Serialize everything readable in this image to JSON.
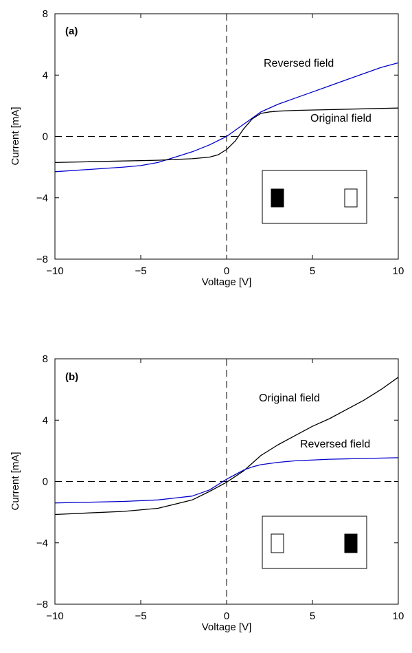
{
  "chart_data": [
    {
      "type": "line",
      "panel_label": "(a)",
      "xlabel": "Voltage [V]",
      "ylabel": "Current [mA]",
      "xlim": [
        -10,
        10
      ],
      "ylim": [
        -8,
        8
      ],
      "xticks": [
        -10,
        -5,
        0,
        5,
        10
      ],
      "yticks": [
        -8,
        -4,
        0,
        4,
        8
      ],
      "x_tick_labels": [
        "−10",
        "−5",
        "0",
        "5",
        "10"
      ],
      "y_tick_labels": [
        "−8",
        "−4",
        "0",
        "4",
        "8"
      ],
      "grid": false,
      "reference_lines": [
        "y=0 dashed",
        "x=0 dashed"
      ],
      "series": [
        {
          "name": "Reversed field",
          "color": "#0000cc",
          "x": [
            -10,
            -8,
            -6,
            -5,
            -4,
            -3,
            -2,
            -1,
            0,
            1,
            2,
            3,
            4,
            5,
            6,
            7,
            8,
            9,
            10
          ],
          "y": [
            -2.3,
            -2.15,
            -2.0,
            -1.9,
            -1.7,
            -1.35,
            -1.0,
            -0.55,
            0.0,
            0.8,
            1.6,
            2.1,
            2.5,
            2.9,
            3.3,
            3.7,
            4.1,
            4.5,
            4.8
          ]
        },
        {
          "name": "Original field",
          "color": "#000000",
          "x": [
            -10,
            -8,
            -6,
            -4,
            -2,
            -1,
            -0.5,
            0,
            0.5,
            1,
            1.5,
            2,
            2.5,
            3,
            4,
            6,
            8,
            10
          ],
          "y": [
            -1.7,
            -1.65,
            -1.6,
            -1.55,
            -1.45,
            -1.35,
            -1.2,
            -0.85,
            -0.3,
            0.5,
            1.15,
            1.5,
            1.6,
            1.65,
            1.7,
            1.75,
            1.8,
            1.85
          ]
        }
      ],
      "annotations": [
        "Reversed field",
        "Original field"
      ],
      "inset": {
        "left_rect_fill": "#000000",
        "right_rect_fill": "#ffffff"
      }
    },
    {
      "type": "line",
      "panel_label": "(b)",
      "xlabel": "Voltage [V]",
      "ylabel": "Current [mA]",
      "xlim": [
        -10,
        10
      ],
      "ylim": [
        -8,
        8
      ],
      "xticks": [
        -10,
        -5,
        0,
        5,
        10
      ],
      "yticks": [
        -8,
        -4,
        0,
        4,
        8
      ],
      "x_tick_labels": [
        "−10",
        "−5",
        "0",
        "5",
        "10"
      ],
      "y_tick_labels": [
        "−8",
        "−4",
        "0",
        "4",
        "8"
      ],
      "grid": false,
      "reference_lines": [
        "y=0 dashed",
        "x=0 dashed"
      ],
      "series": [
        {
          "name": "Original field",
          "color": "#000000",
          "x": [
            -10,
            -8,
            -6,
            -4,
            -2,
            -1,
            0,
            1,
            2,
            3,
            4,
            5,
            6,
            7,
            8,
            9,
            10
          ],
          "y": [
            -2.15,
            -2.05,
            -1.95,
            -1.75,
            -1.2,
            -0.65,
            -0.05,
            0.7,
            1.7,
            2.4,
            3.0,
            3.6,
            4.1,
            4.7,
            5.3,
            6.0,
            6.8
          ]
        },
        {
          "name": "Reversed field",
          "color": "#0000cc",
          "x": [
            -10,
            -8,
            -6,
            -4,
            -2,
            -1,
            0,
            0.5,
            1,
            1.5,
            2,
            3,
            4,
            6,
            8,
            10
          ],
          "y": [
            -1.4,
            -1.35,
            -1.3,
            -1.2,
            -0.95,
            -0.55,
            0.15,
            0.45,
            0.75,
            0.95,
            1.1,
            1.25,
            1.35,
            1.45,
            1.5,
            1.55
          ]
        }
      ],
      "annotations": [
        "Original field",
        "Reversed field"
      ],
      "inset": {
        "left_rect_fill": "#ffffff",
        "right_rect_fill": "#000000"
      }
    }
  ]
}
